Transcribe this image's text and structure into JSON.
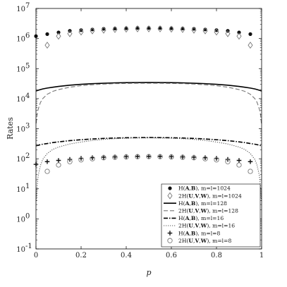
{
  "chart_data": {
    "type": "scatter",
    "xlabel": "p",
    "ylabel": "Rates",
    "xlim": [
      0,
      1
    ],
    "ylim": [
      0.1,
      10000000
    ],
    "yscale": "log",
    "grid": false,
    "legend_position": "bottom-right",
    "x_ticks": [
      "0",
      "0.2",
      "0.4",
      "0.6",
      "0.8",
      "1"
    ],
    "y_ticks": [
      {
        "value": 0.1,
        "base": "10",
        "exp": "-1"
      },
      {
        "value": 1,
        "base": "10",
        "exp": "0"
      },
      {
        "value": 10,
        "base": "10",
        "exp": "1"
      },
      {
        "value": 100,
        "base": "10",
        "exp": "2"
      },
      {
        "value": 1000,
        "base": "10",
        "exp": "3"
      },
      {
        "value": 10000,
        "base": "10",
        "exp": "4"
      },
      {
        "value": 100000,
        "base": "10",
        "exp": "5"
      },
      {
        "value": 1000000,
        "base": "10",
        "exp": "6"
      },
      {
        "value": 10000000,
        "base": "10",
        "exp": "7"
      }
    ],
    "marker_x": [
      0,
      0.05,
      0.1,
      0.15,
      0.2,
      0.25,
      0.3,
      0.35,
      0.4,
      0.45,
      0.5,
      0.55,
      0.6,
      0.65,
      0.7,
      0.75,
      0.8,
      0.85,
      0.9,
      0.95
    ],
    "curve_x": [
      0.001,
      0.005,
      0.01,
      0.02,
      0.03,
      0.05,
      0.075,
      0.1,
      0.15,
      0.2,
      0.25,
      0.3,
      0.35,
      0.4,
      0.45,
      0.5,
      0.55,
      0.6,
      0.65,
      0.7,
      0.75,
      0.8,
      0.85,
      0.9,
      0.925,
      0.95,
      0.97,
      0.98,
      0.99,
      0.995,
      0.999
    ],
    "series": [
      {
        "name": "H(A,B), m=l=1024",
        "legend_parts": [
          [
            "H(",
            "n"
          ],
          [
            "A",
            "b"
          ],
          [
            ",",
            "n"
          ],
          [
            "B",
            "b"
          ],
          [
            "), m=l=1024",
            "n"
          ]
        ],
        "kind": "marker",
        "marker": "dot",
        "color": "#111111",
        "values": [
          1200000,
          1400000,
          1600000,
          1800000,
          1900000,
          2000000,
          2100000,
          2150000,
          2200000,
          2250000,
          2250000,
          2250000,
          2200000,
          2150000,
          2100000,
          2000000,
          1900000,
          1800000,
          1600000,
          1400000
        ]
      },
      {
        "name": "2H(U,V,W), m=l=1024",
        "legend_parts": [
          [
            "2H(",
            "n"
          ],
          [
            "U",
            "b"
          ],
          [
            ",",
            "n"
          ],
          [
            "V",
            "b"
          ],
          [
            ",",
            "n"
          ],
          [
            "W",
            "b"
          ],
          [
            "), m=l=1024",
            "n"
          ]
        ],
        "kind": "marker",
        "marker": "diamond",
        "color": "#777777",
        "values": [
          null,
          600000,
          1200000,
          1450000,
          1650000,
          1800000,
          1900000,
          2000000,
          2050000,
          2100000,
          2100000,
          2100000,
          2050000,
          2000000,
          1900000,
          1800000,
          1650000,
          1450000,
          1200000,
          600000
        ]
      },
      {
        "name": "H(A,B), m=l=128",
        "legend_parts": [
          [
            "H(",
            "n"
          ],
          [
            "A",
            "b"
          ],
          [
            ",",
            "n"
          ],
          [
            "B",
            "b"
          ],
          [
            "), m=l=128",
            "n"
          ]
        ],
        "kind": "line",
        "dash": "",
        "width": 1.6,
        "color": "#000000",
        "values": [
          18000,
          18500,
          19000,
          20000,
          21000,
          22500,
          24000,
          25500,
          28000,
          30000,
          31500,
          32500,
          33500,
          34000,
          34300,
          34500,
          34300,
          34000,
          33500,
          32500,
          31500,
          30000,
          28000,
          25500,
          24000,
          22500,
          21000,
          20000,
          19000,
          18500,
          18000
        ]
      },
      {
        "name": "2H(U,V,W), m=l=128",
        "legend_parts": [
          [
            "2H(",
            "n"
          ],
          [
            "U",
            "b"
          ],
          [
            ",",
            "n"
          ],
          [
            "V",
            "b"
          ],
          [
            ",",
            "n"
          ],
          [
            "W",
            "b"
          ],
          [
            "), m=l=128",
            "n"
          ]
        ],
        "kind": "line",
        "dash": "6,3",
        "width": 1.1,
        "color": "#777777",
        "values": [
          1500,
          3000,
          4500,
          7500,
          10000,
          14000,
          17500,
          20000,
          24000,
          27000,
          29000,
          30500,
          31500,
          32000,
          32500,
          32500,
          32500,
          32000,
          31500,
          30500,
          29000,
          27000,
          24000,
          20000,
          17500,
          14000,
          10000,
          7500,
          4500,
          3000,
          1500
        ]
      },
      {
        "name": "H(A,B), m=l=16",
        "legend_parts": [
          [
            "H(",
            "n"
          ],
          [
            "A",
            "b"
          ],
          [
            ",",
            "n"
          ],
          [
            "B",
            "b"
          ],
          [
            "), m=l=16",
            "n"
          ]
        ],
        "kind": "line",
        "dash": "6,2,1.5,2",
        "width": 1.6,
        "color": "#000000",
        "values": [
          270,
          275,
          280,
          295,
          305,
          320,
          345,
          365,
          400,
          430,
          455,
          475,
          490,
          500,
          505,
          510,
          505,
          500,
          490,
          475,
          455,
          430,
          400,
          365,
          345,
          320,
          305,
          295,
          280,
          275,
          270
        ]
      },
      {
        "name": "2H(U,V,W), m=l=16",
        "legend_parts": [
          [
            "2H(",
            "n"
          ],
          [
            "U",
            "b"
          ],
          [
            ",",
            "n"
          ],
          [
            "V",
            "b"
          ],
          [
            ",",
            "n"
          ],
          [
            "W",
            "b"
          ],
          [
            "), m=l=16",
            "n"
          ]
        ],
        "kind": "line",
        "dash": "1.2,1.8",
        "width": 1.1,
        "color": "#555555",
        "values": [
          4,
          12,
          28,
          60,
          95,
          150,
          205,
          245,
          310,
          360,
          405,
          440,
          465,
          480,
          490,
          495,
          490,
          480,
          465,
          440,
          405,
          360,
          310,
          245,
          205,
          150,
          95,
          60,
          28,
          12,
          4
        ]
      },
      {
        "name": "H(A,B), m=l=8",
        "legend_parts": [
          [
            "H(",
            "n"
          ],
          [
            "A",
            "b"
          ],
          [
            ",",
            "n"
          ],
          [
            "B",
            "b"
          ],
          [
            "), m=l=8",
            "n"
          ]
        ],
        "kind": "marker",
        "marker": "plus",
        "color": "#111111",
        "values": [
          65,
          80,
          88,
          95,
          103,
          108,
          112,
          115,
          118,
          120,
          120,
          120,
          118,
          115,
          112,
          108,
          103,
          95,
          88,
          80
        ]
      },
      {
        "name": "2H(U,V,W), m=l=8",
        "legend_parts": [
          [
            "2H(",
            "n"
          ],
          [
            "U",
            "b"
          ],
          [
            ",",
            "n"
          ],
          [
            "V",
            "b"
          ],
          [
            ",",
            "n"
          ],
          [
            "W",
            "b"
          ],
          [
            "), m=l=8",
            "n"
          ]
        ],
        "kind": "marker",
        "marker": "circle",
        "color": "#777777",
        "values": [
          null,
          38,
          62,
          80,
          92,
          100,
          108,
          112,
          115,
          117,
          118,
          117,
          115,
          112,
          108,
          100,
          92,
          80,
          62,
          38
        ]
      }
    ]
  }
}
